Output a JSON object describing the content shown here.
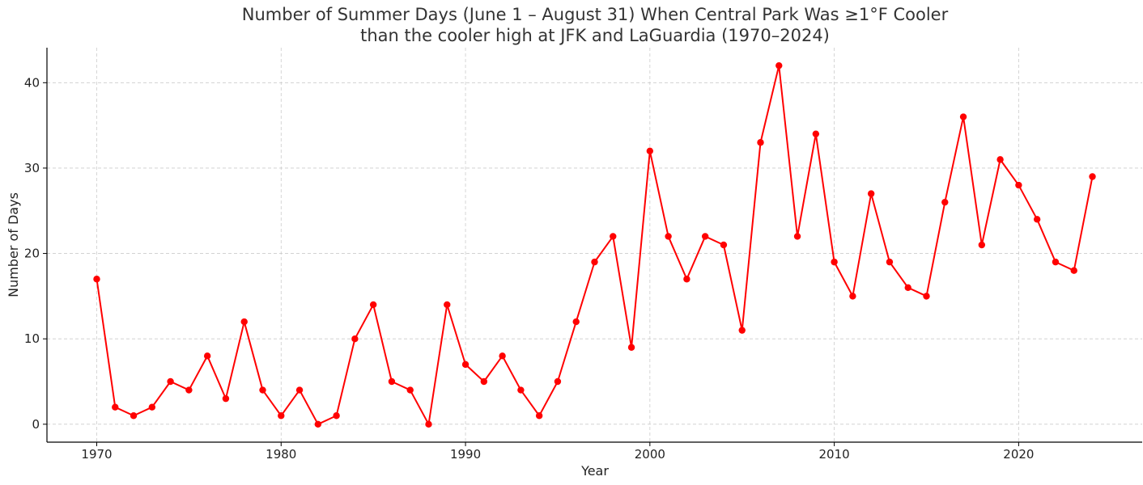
{
  "chart_data": {
    "type": "line",
    "title_lines": [
      "Number of Summer Days (June 1 – August 31) When Central Park Was ≥1°F Cooler",
      "than the cooler high at JFK and LaGuardia (1970–2024)"
    ],
    "xlabel": "Year",
    "ylabel": "Number of Days",
    "xlim": [
      1967.3,
      2026.7
    ],
    "ylim": [
      -2.1,
      44.1
    ],
    "x_ticks": [
      1970,
      1980,
      1990,
      2000,
      2010,
      2020
    ],
    "y_ticks": [
      0,
      10,
      20,
      30,
      40
    ],
    "grid": true,
    "line_color": "#ff0000",
    "series": [
      {
        "x": [
          1970,
          1971,
          1972,
          1973,
          1974,
          1975,
          1976,
          1977,
          1978,
          1979,
          1980,
          1981,
          1982,
          1983,
          1984,
          1985,
          1986,
          1987,
          1988,
          1989,
          1990,
          1991,
          1992,
          1993,
          1994,
          1995,
          1996,
          1997,
          1998,
          1999,
          2000,
          2001,
          2002,
          2003,
          2004,
          2005,
          2006,
          2007,
          2008,
          2009,
          2010,
          2011,
          2012,
          2013,
          2014,
          2015,
          2016,
          2017,
          2018,
          2019,
          2020,
          2021,
          2022,
          2023,
          2024
        ],
        "values": [
          17,
          2,
          1,
          2,
          5,
          4,
          8,
          3,
          12,
          4,
          1,
          4,
          0,
          1,
          10,
          14,
          5,
          4,
          0,
          14,
          7,
          5,
          8,
          4,
          1,
          5,
          12,
          19,
          22,
          9,
          32,
          22,
          17,
          22,
          21,
          11,
          33,
          42,
          22,
          34,
          19,
          15,
          27,
          19,
          16,
          15,
          26,
          36,
          21,
          31,
          28,
          24,
          19,
          18,
          29
        ]
      }
    ]
  }
}
